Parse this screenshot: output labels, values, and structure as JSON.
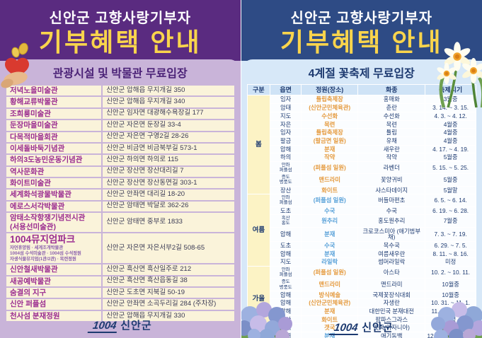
{
  "colors": {
    "left_header_bg": "#5a2b80",
    "left_body_bg": "#c9b4d9",
    "title_yellow": "#f9d44c",
    "left_section_text": "#4b2277",
    "museum_name_text": "#9a2b90",
    "cell_cream_bg": "#faf3da",
    "right_header_bg": "#2e4b85",
    "right_body_bg": "#d7e8f8",
    "navy_text": "#1d3a70",
    "season_cell_bg": "#fcf3c5",
    "garden_orange": "#e59a3d",
    "garden_blue": "#57a0d8"
  },
  "left_panel": {
    "title_line1": "신안군 고향사랑기부자",
    "title_line2": "기부혜택 안내",
    "section_title": "관광시설 및 박물관 무료입장",
    "table": {
      "rows": [
        {
          "name": "저녁노을미술관",
          "address": "신안군 압해읍 무지개길 350"
        },
        {
          "name": "황해교류박물관",
          "address": "신안군 압해읍 무지개길 340"
        },
        {
          "name": "조희룡미술관",
          "address": "신안군 임자면 대광해수욕장길 177"
        },
        {
          "name": "둔장마을미술관",
          "address": "신안군 자은면 둔장길 33-4"
        },
        {
          "name": "다목적마을회관",
          "address": "신안군 자은면 구영2길 28-26"
        },
        {
          "name": "이세돌바둑기념관",
          "address": "신안군 비금면 비금북부길 573-1"
        },
        {
          "name": "하의3도농민운동기념관",
          "address": "신안군 하의면 하의로 115"
        },
        {
          "name": "역사문화관",
          "address": "신안군 장산면 장산대리길 7"
        },
        {
          "name": "화이트미술관",
          "address": "신안군 장산면 장산동면길 303-1"
        },
        {
          "name": "세계화석광물박물관",
          "address": "신안군 안좌면 대리길 18-20"
        },
        {
          "name": "에로스서각박물관",
          "address": "신안군 암태면 박달로 362-26"
        },
        {
          "name": "암태소작항쟁기념전시관\n(서용선미술관)",
          "address": "신안군 암태면 중부로 1833"
        },
        {
          "name": "1004뮤지엄파크",
          "sub": [
            "자연휴양림 · 세계조개박물관",
            "1004섬 수석미술관 · 1004섬 수석정원",
            "자생식물뮤지엄(1관/2관) · 목련정원"
          ],
          "address": "신안군 자은면 자은서부2길 508-65"
        },
        {
          "name": "신안철새박물관",
          "address": "신안군 흑산면 흑산일주로 212"
        },
        {
          "name": "새공예박물관",
          "address": "신안군 흑산면 흑산읍동길 38"
        },
        {
          "name": "숨결의 지구",
          "address": "신안군 도초면 지북길 50-19"
        },
        {
          "name": "신안 퍼플섬",
          "address": "신안군 안좌면 소곡두리길 284 (주차장)"
        },
        {
          "name": "천사섬 분재정원",
          "address": "신안군 압해읍 무지개길 330"
        }
      ]
    },
    "footer_logo": {
      "prefix": "1004",
      "text": "신안군"
    }
  },
  "right_panel": {
    "title_line1": "신안군 고향사랑기부자",
    "title_line2": "기부혜택 안내",
    "section_title": "4계절 꽃축제 무료입장",
    "table": {
      "headers": [
        "구분",
        "읍면",
        "정원(장소)",
        "화종",
        "축제시기"
      ],
      "seasons": [
        {
          "label": "봄",
          "garden_color": "#e59a3d",
          "rows": [
            [
              "임자",
              "튤립축제장",
              "홍매화",
              "3월중"
            ],
            [
              "암태",
              "(신안군민체육관)",
              "춘란",
              "3. 14. ~ 3. 15."
            ],
            [
              "지도",
              "수선화",
              "수선화",
              "4. 3. ~ 4. 12."
            ],
            [
              "자은",
              "목련",
              "목련",
              "4월중"
            ],
            [
              "임자",
              "튤립축제장",
              "튤립",
              "4월중"
            ],
            [
              "팔금",
              "(팔금면 일원)",
              "유채",
              "4월중"
            ],
            [
              "압해",
              "분재",
              "새우란",
              "4. 17. ~ 4. 19."
            ],
            [
              "하의",
              "작약",
              "작약",
              "5월중"
            ],
            [
              "안좌\n퍼플섬",
              "(퍼플섬 일원)",
              "라벤더",
              "5. 15. ~ 5. 25."
            ],
            [
              "증도\n병풍도",
              "맨드라미",
              "꽃양귀비",
              "5월중"
            ],
            [
              "장산",
              "화이트",
              "샤스타데이지",
              "5월말"
            ]
          ]
        },
        {
          "label": "여름",
          "garden_color": "#57a0d8",
          "rows": [
            [
              "안좌\n퍼플섬",
              "(퍼플섬 일원)",
              "버들마편초",
              "6. 5. ~ 6. 14."
            ],
            [
              "도초",
              "수국",
              "수국",
              "6. 19. ~ 6. 28."
            ],
            [
              "흑산\n홍도",
              "원추리",
              "홍도원추리",
              "7월중"
            ],
            [
              "압해",
              "분재",
              "크로코스미아 (애기범부채)",
              "7. 3. ~ 7. 19."
            ],
            [
              "도초",
              "수국",
              "목수국",
              "6. 29. ~ 7. 5."
            ],
            [
              "압해",
              "분재",
              "여름새우란",
              "8. 11. ~ 8. 16."
            ],
            [
              "지도",
              "라일락",
              "썸머라일락",
              "미정"
            ]
          ]
        },
        {
          "label": "가을",
          "garden_color": "#e59a3d",
          "rows": [
            [
              "안좌\n퍼플섬",
              "(퍼플섬 일원)",
              "아스타",
              "10. 2. ~ 10. 11."
            ],
            [
              "증도\n병풍도",
              "맨드라미",
              "맨드라미",
              "10월중"
            ],
            [
              "압해",
              "방식예술",
              "국제꽃장식대회",
              "10월중"
            ],
            [
              "압해",
              "(신안군민체육관)",
              "자생란",
              "10. 31. ~ 11. 1."
            ],
            [
              "압해",
              "분재",
              "대한민국 분재대전",
              "11. 6. ~ 11. 10."
            ],
            [
              "장산",
              "화이트",
              "팜파스그라스",
              "미정"
            ],
            [
              "압해",
              "갯국",
              "갯국(아자니아)",
              "11월중"
            ]
          ]
        },
        {
          "label": "겨울",
          "garden_color": "#57a0d8",
          "rows": [
            [
              "압해",
              "분재",
              "애기동백",
              "12. 18.~'27. 1. 17."
            ]
          ]
        }
      ]
    },
    "footer_logo": {
      "prefix": "1004",
      "text": "신안군"
    }
  }
}
